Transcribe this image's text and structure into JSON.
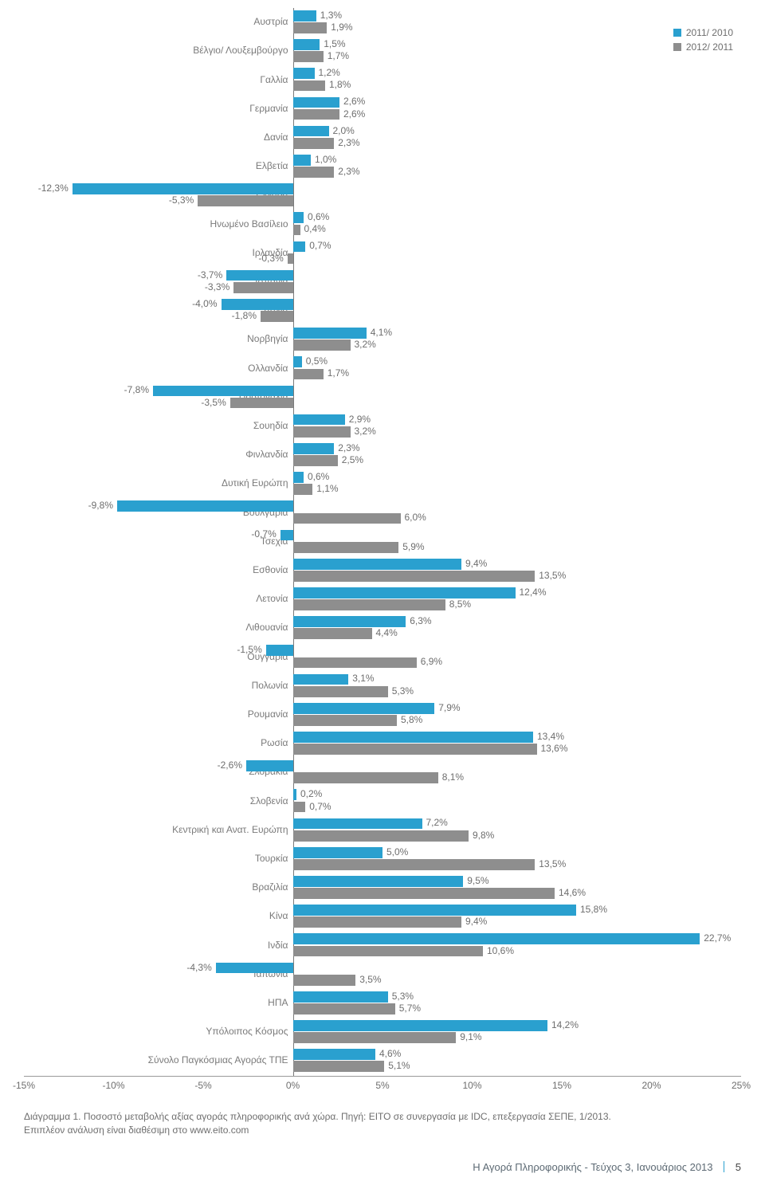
{
  "chart": {
    "type": "bar",
    "xmin": -15,
    "xmax": 25,
    "tick_step": 5,
    "ticks": [
      "-15%",
      "-10%",
      "-5%",
      "0%",
      "5%",
      "10%",
      "15%",
      "20%",
      "25%"
    ],
    "series": [
      {
        "label": "2011/ 2010",
        "color": "#2aa0cf"
      },
      {
        "label": "2012/ 2011",
        "color": "#8e8e8e"
      }
    ],
    "bg": "#ffffff",
    "zero_color": "#7a7a7a",
    "label_fontsize": 12,
    "categories": [
      {
        "label": "Αυστρία",
        "v": [
          1.3,
          1.9
        ]
      },
      {
        "label": "Βέλγιο/ Λουξεμβούργο",
        "v": [
          1.5,
          1.7
        ]
      },
      {
        "label": "Γαλλία",
        "v": [
          1.2,
          1.8
        ]
      },
      {
        "label": "Γερμανία",
        "v": [
          2.6,
          2.6
        ]
      },
      {
        "label": "Δανία",
        "v": [
          2.0,
          2.3
        ]
      },
      {
        "label": "Ελβετία",
        "v": [
          1.0,
          2.3
        ]
      },
      {
        "label": "Ελλάδα",
        "v": [
          -12.3,
          -5.3
        ]
      },
      {
        "label": "Ηνωμένο Βασίλειο",
        "v": [
          0.6,
          0.4
        ]
      },
      {
        "label": "Ιρλανδία",
        "v": [
          0.7,
          -0.3
        ]
      },
      {
        "label": "Ισπανία",
        "v": [
          -3.7,
          -3.3
        ]
      },
      {
        "label": "Ιταλία",
        "v": [
          -4.0,
          -1.8
        ]
      },
      {
        "label": "Νορβηγία",
        "v": [
          4.1,
          3.2
        ]
      },
      {
        "label": "Ολλανδία",
        "v": [
          0.5,
          1.7
        ]
      },
      {
        "label": "Πορτογαλία",
        "v": [
          -7.8,
          -3.5
        ]
      },
      {
        "label": "Σουηδία",
        "v": [
          2.9,
          3.2
        ]
      },
      {
        "label": "Φινλανδία",
        "v": [
          2.3,
          2.5
        ]
      },
      {
        "label": "Δυτική Ευρώπη",
        "v": [
          0.6,
          1.1
        ]
      },
      {
        "label": "Βουλγαρία",
        "v": [
          -9.8,
          6.0
        ]
      },
      {
        "label": "Τσεχία",
        "v": [
          -0.7,
          5.9
        ]
      },
      {
        "label": "Εσθονία",
        "v": [
          9.4,
          13.5
        ]
      },
      {
        "label": "Λετονία",
        "v": [
          12.4,
          8.5
        ]
      },
      {
        "label": "Λιθουανία",
        "v": [
          6.3,
          4.4
        ]
      },
      {
        "label": "Ουγγαρία",
        "v": [
          -1.5,
          6.9
        ]
      },
      {
        "label": "Πολωνία",
        "v": [
          3.1,
          5.3
        ]
      },
      {
        "label": "Ρουμανία",
        "v": [
          7.9,
          5.8
        ]
      },
      {
        "label": "Ρωσία",
        "v": [
          13.4,
          13.6
        ]
      },
      {
        "label": "Σλοβακία",
        "v": [
          -2.6,
          8.1
        ]
      },
      {
        "label": "Σλοβενία",
        "v": [
          0.2,
          0.7
        ]
      },
      {
        "label": "Κεντρική και Ανατ. Ευρώπη",
        "v": [
          7.2,
          9.8
        ]
      },
      {
        "label": "Τουρκία",
        "v": [
          5.0,
          13.5
        ]
      },
      {
        "label": "Βραζιλία",
        "v": [
          9.5,
          14.6
        ]
      },
      {
        "label": "Κίνα",
        "v": [
          15.8,
          9.4
        ]
      },
      {
        "label": "Ινδία",
        "v": [
          22.7,
          10.6
        ]
      },
      {
        "label": "Ιαπωνία",
        "v": [
          -4.3,
          3.5
        ]
      },
      {
        "label": "ΗΠΑ",
        "v": [
          5.3,
          5.7
        ]
      },
      {
        "label": "Υπόλοιπος Κόσμος",
        "v": [
          14.2,
          9.1
        ]
      },
      {
        "label": "Σύνολο Παγκόσμιας Αγοράς ΤΠΕ",
        "v": [
          4.6,
          5.1
        ]
      }
    ]
  },
  "caption_line1": "Διάγραμμα 1. Ποσοστό μεταβολής αξίας αγοράς πληροφορικής ανά χώρα. Πηγή: EITO σε συνεργασία με IDC, επεξεργασία ΣΕΠΕ, 1/2013.",
  "caption_line2": "Επιπλέον ανάλυση είναι διαθέσιμη στο www.eito.com",
  "footer_title": "Η Αγορά Πληροφορικής - Τεύχος 3, Ιανουάριος 2013",
  "footer_page": "5"
}
